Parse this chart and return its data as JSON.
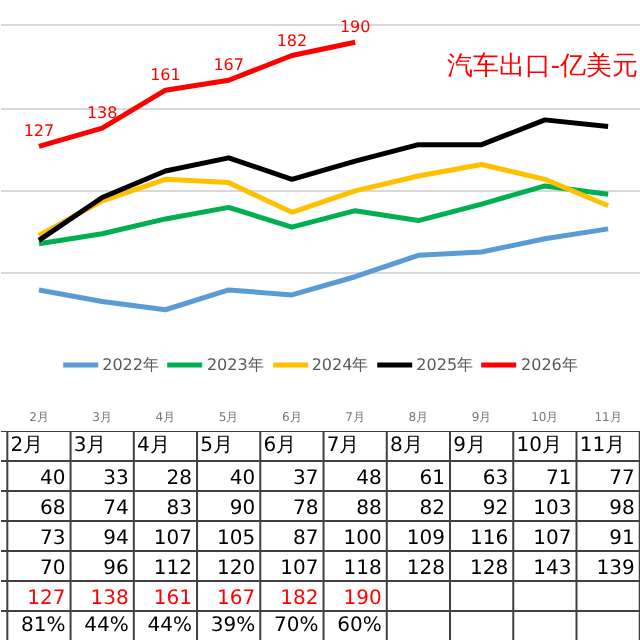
{
  "chart_data": {
    "type": "line",
    "title": "汽车出口-亿美元",
    "categories": [
      "2月",
      "3月",
      "4月",
      "5月",
      "6月",
      "7月",
      "8月",
      "9月",
      "10月",
      "11月"
    ],
    "series": [
      {
        "name": "2022年",
        "color": "#5b9bd5",
        "values": [
          40,
          33,
          28,
          40,
          37,
          48,
          61,
          63,
          71,
          77
        ]
      },
      {
        "name": "2023年",
        "color": "#00b050",
        "values": [
          68,
          74,
          83,
          90,
          78,
          88,
          82,
          92,
          103,
          98
        ]
      },
      {
        "name": "2024年",
        "color": "#ffc000",
        "values": [
          73,
          94,
          107,
          105,
          87,
          100,
          109,
          116,
          107,
          91
        ]
      },
      {
        "name": "2025年",
        "color": "#000000",
        "values": [
          70,
          96,
          112,
          120,
          107,
          118,
          128,
          128,
          143,
          139
        ]
      },
      {
        "name": "2026年",
        "color": "#ff0000",
        "values": [
          127,
          138,
          161,
          167,
          182,
          190,
          null,
          null,
          null,
          null
        ],
        "value_labels": [
          "127",
          "138",
          "161",
          "167",
          "182",
          "190",
          null,
          null,
          null,
          null
        ]
      }
    ],
    "yticks": [
      {
        "value": 50,
        "label": null
      },
      {
        "value": 100,
        "label": null
      },
      {
        "value": 150,
        "label": null
      },
      {
        "value": 200,
        "label": null
      }
    ],
    "grid": "y",
    "legend": "bottom",
    "tick_labels": "x",
    "data_labels": true,
    "annotations": [
      "127",
      "138",
      "161",
      "167",
      "182",
      "190",
      "81%",
      "44%",
      "44%",
      "39%",
      "70%",
      "60%"
    ]
  }
}
